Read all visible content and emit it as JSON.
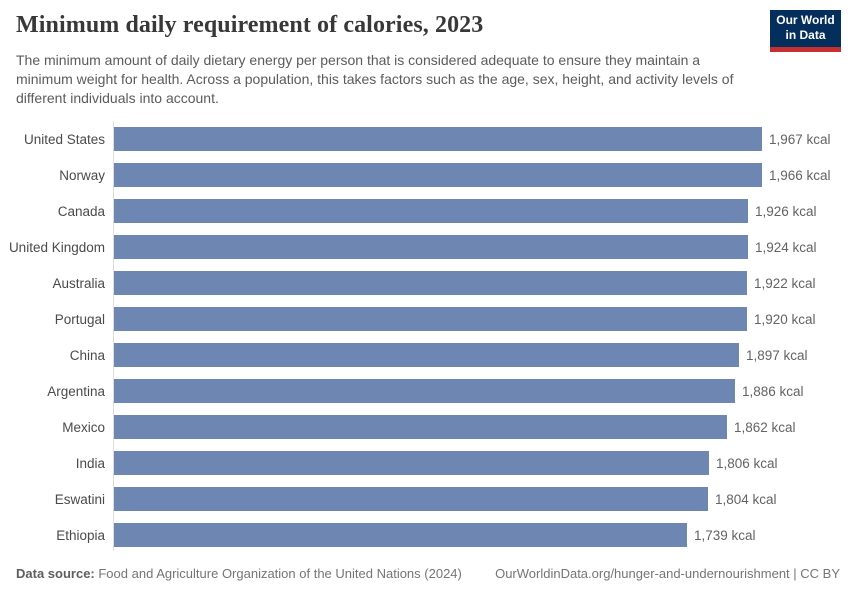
{
  "header": {
    "title": "Minimum daily requirement of calories, 2023",
    "subtitle": "The minimum amount of daily dietary energy per person that is considered adequate to ensure they maintain a minimum weight for health. Across a population, this takes factors such as the age, sex, height, and activity levels of different individuals into account.",
    "logo": {
      "line1": "Our World",
      "line2": "in Data",
      "bg_color": "#042e5b",
      "accent_color": "#c62f30"
    }
  },
  "chart_data": {
    "type": "bar",
    "orientation": "horizontal",
    "title": "Minimum daily requirement of calories, 2023",
    "unit": "kcal",
    "bar_color": "#6e87b2",
    "xlim": [
      0,
      1967
    ],
    "grid": false,
    "legend": false,
    "categories": [
      "United States",
      "Norway",
      "Canada",
      "United Kingdom",
      "Australia",
      "Portugal",
      "China",
      "Argentina",
      "Mexico",
      "India",
      "Eswatini",
      "Ethiopia"
    ],
    "values": [
      1967,
      1966,
      1926,
      1924,
      1922,
      1920,
      1897,
      1886,
      1862,
      1806,
      1804,
      1739
    ],
    "value_labels": [
      "1,967 kcal",
      "1,966 kcal",
      "1,926 kcal",
      "1,924 kcal",
      "1,922 kcal",
      "1,920 kcal",
      "1,897 kcal",
      "1,886 kcal",
      "1,862 kcal",
      "1,806 kcal",
      "1,804 kcal",
      "1,739 kcal"
    ]
  },
  "footer": {
    "source_label": "Data source:",
    "source_text": " Food and Agriculture Organization of the United Nations (2024)",
    "link_text": "OurWorldinData.org/hunger-and-undernourishment | CC BY"
  }
}
